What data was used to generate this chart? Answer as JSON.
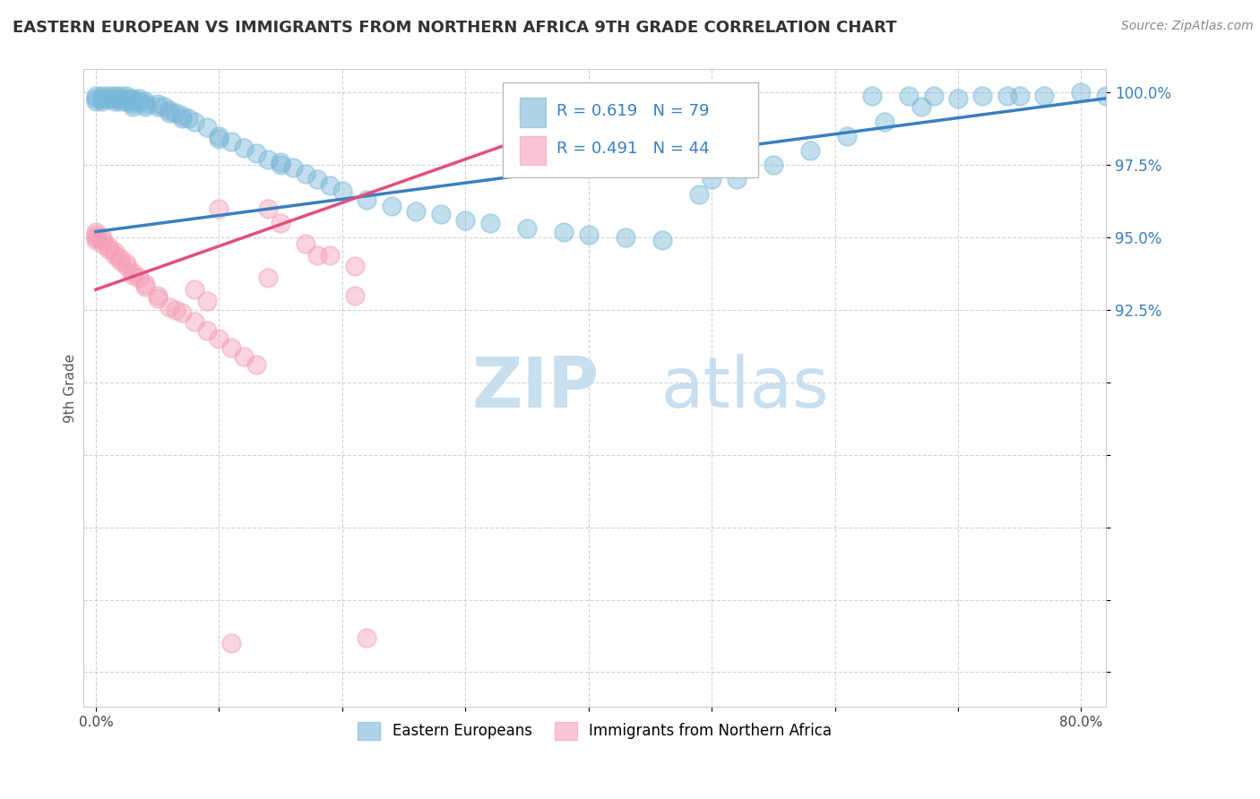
{
  "title": "EASTERN EUROPEAN VS IMMIGRANTS FROM NORTHERN AFRICA 9TH GRADE CORRELATION CHART",
  "source": "Source: ZipAtlas.com",
  "ylabel": "9th Grade",
  "xlim": [
    -0.01,
    0.82
  ],
  "ylim": [
    0.788,
    1.008
  ],
  "yticks": [
    0.8,
    0.825,
    0.85,
    0.875,
    0.9,
    0.925,
    0.95,
    0.975,
    1.0
  ],
  "yticklabels": [
    "",
    "",
    "",
    "",
    "",
    "92.5%",
    "95.0%",
    "97.5%",
    "100.0%"
  ],
  "xticks": [
    0.0,
    0.1,
    0.2,
    0.3,
    0.4,
    0.5,
    0.6,
    0.7,
    0.8
  ],
  "xticklabels": [
    "0.0%",
    "",
    "",
    "",
    "",
    "",
    "",
    "",
    "80.0%"
  ],
  "legend_labels": [
    "Eastern Europeans",
    "Immigrants from Northern Africa"
  ],
  "legend_r_blue": "R = 0.619",
  "legend_n_blue": "N = 79",
  "legend_r_pink": "R = 0.491",
  "legend_n_pink": "N = 44",
  "blue_color": "#7ab8d9",
  "pink_color": "#f4a0b8",
  "blue_line_color": "#3a7fc1",
  "pink_line_color": "#e0507a",
  "text_color": "#3a7fc1",
  "watermark_color": "#c8dff0",
  "background_color": "#ffffff",
  "grid_color": "#c8c8c8",
  "blue_trendline_x": [
    0.0,
    0.82
  ],
  "blue_trendline_y": [
    0.952,
    0.998
  ],
  "pink_trendline_x": [
    0.0,
    0.46
  ],
  "pink_trendline_y": [
    0.932,
    1.001
  ],
  "blue_x": [
    0.0,
    0.0,
    0.0,
    0.005,
    0.005,
    0.005,
    0.01,
    0.01,
    0.015,
    0.015,
    0.015,
    0.02,
    0.02,
    0.02,
    0.025,
    0.025,
    0.025,
    0.03,
    0.03,
    0.03,
    0.03,
    0.035,
    0.035,
    0.04,
    0.04,
    0.04,
    0.05,
    0.05,
    0.055,
    0.06,
    0.06,
    0.065,
    0.07,
    0.07,
    0.075,
    0.08,
    0.09,
    0.1,
    0.1,
    0.11,
    0.12,
    0.13,
    0.14,
    0.15,
    0.15,
    0.16,
    0.17,
    0.18,
    0.19,
    0.2,
    0.22,
    0.24,
    0.26,
    0.28,
    0.3,
    0.32,
    0.35,
    0.38,
    0.4,
    0.43,
    0.46,
    0.49,
    0.52,
    0.55,
    0.58,
    0.61,
    0.64,
    0.67,
    0.7,
    0.74,
    0.77,
    0.8,
    0.82,
    0.72,
    0.75,
    0.63,
    0.66,
    0.68,
    0.5
  ],
  "blue_y": [
    0.999,
    0.998,
    0.997,
    0.999,
    0.998,
    0.997,
    0.999,
    0.998,
    0.999,
    0.998,
    0.997,
    0.999,
    0.998,
    0.997,
    0.999,
    0.998,
    0.997,
    0.998,
    0.997,
    0.996,
    0.995,
    0.998,
    0.997,
    0.997,
    0.996,
    0.995,
    0.996,
    0.995,
    0.995,
    0.994,
    0.993,
    0.993,
    0.992,
    0.991,
    0.991,
    0.99,
    0.988,
    0.985,
    0.984,
    0.983,
    0.981,
    0.979,
    0.977,
    0.975,
    0.976,
    0.974,
    0.972,
    0.97,
    0.968,
    0.966,
    0.963,
    0.961,
    0.959,
    0.958,
    0.956,
    0.955,
    0.953,
    0.952,
    0.951,
    0.95,
    0.949,
    0.965,
    0.97,
    0.975,
    0.98,
    0.985,
    0.99,
    0.995,
    0.998,
    0.999,
    0.999,
    1.0,
    0.999,
    0.999,
    0.999,
    0.999,
    0.999,
    0.999,
    0.97
  ],
  "pink_x": [
    0.0,
    0.0,
    0.0,
    0.0,
    0.005,
    0.005,
    0.005,
    0.01,
    0.01,
    0.015,
    0.015,
    0.02,
    0.02,
    0.025,
    0.025,
    0.03,
    0.03,
    0.035,
    0.04,
    0.04,
    0.05,
    0.05,
    0.06,
    0.065,
    0.07,
    0.08,
    0.09,
    0.1,
    0.11,
    0.12,
    0.13,
    0.14,
    0.15,
    0.17,
    0.19,
    0.21,
    0.14,
    0.08,
    0.09,
    0.1,
    0.18,
    0.21,
    0.11,
    0.22
  ],
  "pink_y": [
    0.952,
    0.951,
    0.95,
    0.949,
    0.95,
    0.949,
    0.948,
    0.947,
    0.946,
    0.945,
    0.944,
    0.943,
    0.942,
    0.941,
    0.94,
    0.938,
    0.937,
    0.936,
    0.934,
    0.933,
    0.93,
    0.929,
    0.926,
    0.925,
    0.924,
    0.921,
    0.918,
    0.915,
    0.912,
    0.909,
    0.906,
    0.96,
    0.955,
    0.948,
    0.944,
    0.94,
    0.936,
    0.932,
    0.928,
    0.96,
    0.944,
    0.93,
    0.81,
    0.812
  ]
}
